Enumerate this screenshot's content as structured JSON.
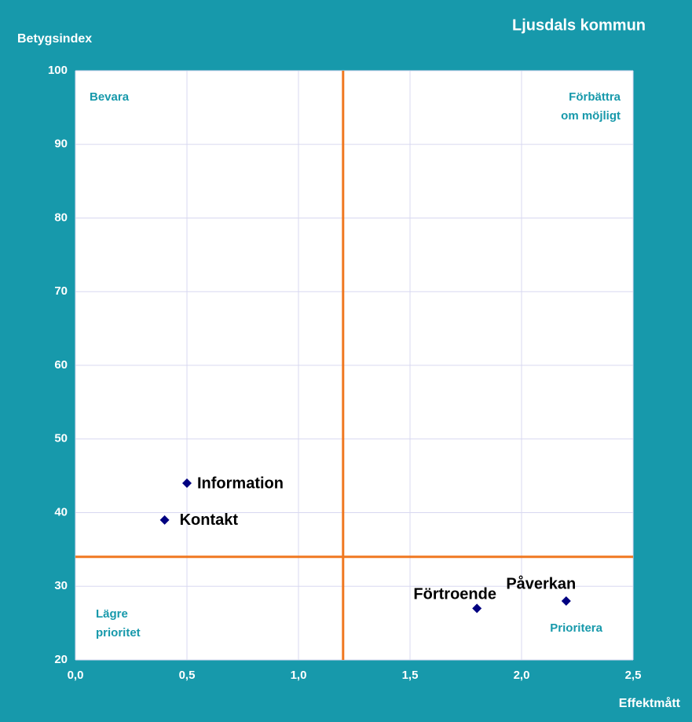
{
  "chart_data": {
    "type": "scatter",
    "title": "Ljusdals kommun",
    "ylabel": "Betygsindex",
    "xlabel": "Effektmått",
    "labels": [
      "Information",
      "Kontakt",
      "Förtroende",
      "Påverkan"
    ],
    "x": [
      0.5,
      0.4,
      1.8,
      2.2
    ],
    "values": [
      44,
      39,
      27,
      28
    ],
    "color": "#000080",
    "xlim": [
      0,
      2.5
    ],
    "ylim": [
      20,
      100
    ],
    "xticks": [
      {
        "value": 0,
        "label": "0,0"
      },
      {
        "value": 0.5,
        "label": "0,5"
      },
      {
        "value": 1,
        "label": "1,0"
      },
      {
        "value": 1.5,
        "label": "1,5"
      },
      {
        "value": 2,
        "label": "2,0"
      },
      {
        "value": 2.5,
        "label": "2,5"
      }
    ],
    "yticks": [
      20,
      30,
      40,
      50,
      60,
      70,
      80,
      90,
      100
    ],
    "grid": true,
    "vlines": [
      1.2
    ],
    "hlines": [
      34
    ],
    "line_color": "#f07820",
    "annotations": [
      {
        "lines": [
          "Bevara"
        ],
        "corner": "top-left"
      },
      {
        "lines": [
          "Förbättra",
          "om möjligt"
        ],
        "corner": "top-right"
      },
      {
        "lines": [
          "Lägre",
          "prioritet"
        ],
        "corner": "bottom-left"
      },
      {
        "lines": [
          "Prioritera"
        ],
        "corner": "bottom-right"
      }
    ]
  }
}
